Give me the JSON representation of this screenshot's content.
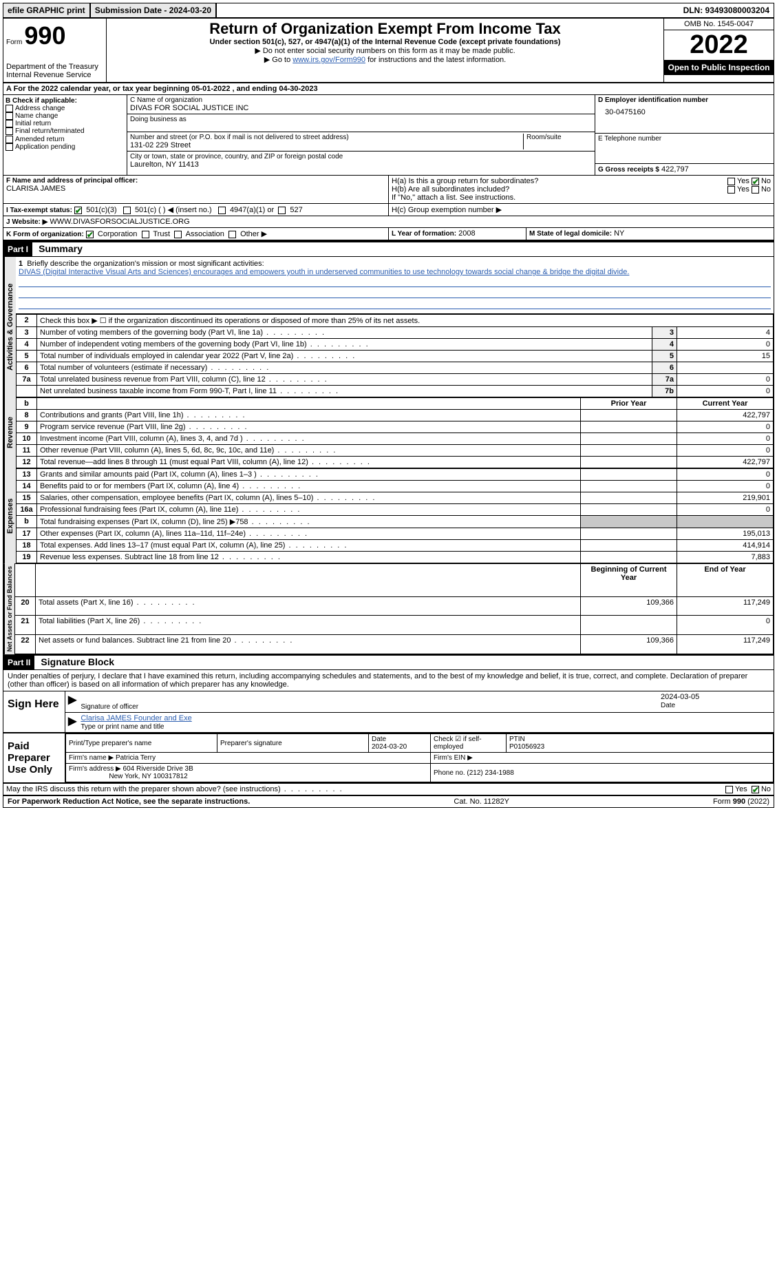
{
  "topbar": {
    "efile": "efile GRAPHIC print",
    "submission": "Submission Date - 2024-03-20",
    "dln": "DLN: 93493080003204"
  },
  "header": {
    "form_word": "Form",
    "form_num": "990",
    "title": "Return of Organization Exempt From Income Tax",
    "subtitle": "Under section 501(c), 527, or 4947(a)(1) of the Internal Revenue Code (except private foundations)",
    "note1": "▶ Do not enter social security numbers on this form as it may be made public.",
    "note2_pre": "▶ Go to ",
    "note2_link": "www.irs.gov/Form990",
    "note2_post": " for instructions and the latest information.",
    "dept": "Department of the Treasury",
    "irs": "Internal Revenue Service",
    "omb": "OMB No. 1545-0047",
    "year": "2022",
    "open": "Open to Public Inspection"
  },
  "lineA": "A For the 2022 calendar year, or tax year beginning 05-01-2022   , and ending 04-30-2023",
  "colB": {
    "title": "B Check if applicable:",
    "opts": [
      "Address change",
      "Name change",
      "Initial return",
      "Final return/terminated",
      "Amended return",
      "Application pending"
    ]
  },
  "colC": {
    "name_lbl": "C Name of organization",
    "name": "DIVAS FOR SOCIAL JUSTICE INC",
    "dba_lbl": "Doing business as",
    "addr_lbl": "Number and street (or P.O. box if mail is not delivered to street address)",
    "room_lbl": "Room/suite",
    "addr": "131-02 229 Street",
    "city_lbl": "City or town, state or province, country, and ZIP or foreign postal code",
    "city": "Laurelton, NY  11413"
  },
  "colD": {
    "ein_lbl": "D Employer identification number",
    "ein": "30-0475160",
    "tel_lbl": "E Telephone number",
    "gross_lbl": "G Gross receipts $",
    "gross": "422,797"
  },
  "rowF": {
    "lbl": "F  Name and address of principal officer:",
    "name": "CLARISA JAMES"
  },
  "rowH": {
    "ha": "H(a)  Is this a group return for subordinates?",
    "hb": "H(b)  Are all subordinates included?",
    "hb_note": "If \"No,\" attach a list. See instructions.",
    "hc": "H(c)  Group exemption number ▶",
    "yes": "Yes",
    "no": "No"
  },
  "rowI": {
    "lbl": "I   Tax-exempt status:",
    "o1": "501(c)(3)",
    "o2": "501(c) (  ) ◀ (insert no.)",
    "o3": "4947(a)(1) or",
    "o4": "527"
  },
  "rowJ": {
    "lbl": "J   Website: ▶",
    "val": "WWW.DIVASFORSOCIALJUSTICE.ORG"
  },
  "rowK": {
    "lbl": "K Form of organization:",
    "o1": "Corporation",
    "o2": "Trust",
    "o3": "Association",
    "o4": "Other ▶",
    "l_lbl": "L Year of formation:",
    "l_val": "2008",
    "m_lbl": "M State of legal domicile:",
    "m_val": "NY"
  },
  "part1": {
    "hdr": "Part I",
    "title": "Summary"
  },
  "section_labels": {
    "activities": "Activities & Governance",
    "revenue": "Revenue",
    "expenses": "Expenses",
    "net": "Net Assets or Fund Balances"
  },
  "summary": {
    "l1_lbl": "Briefly describe the organization's mission or most significant activities:",
    "l1_txt": "DIVAS (Digital Interactive Visual Arts and Sciences) encourages and empowers youth in underserved communities to use technology towards social change & bridge the digital divide.",
    "l2": "Check this box ▶ ☐  if the organization discontinued its operations or disposed of more than 25% of its net assets.",
    "rows_top": [
      {
        "n": "3",
        "t": "Number of voting members of the governing body (Part VI, line 1a)",
        "ln": "3",
        "v": "4"
      },
      {
        "n": "4",
        "t": "Number of independent voting members of the governing body (Part VI, line 1b)",
        "ln": "4",
        "v": "0"
      },
      {
        "n": "5",
        "t": "Total number of individuals employed in calendar year 2022 (Part V, line 2a)",
        "ln": "5",
        "v": "15"
      },
      {
        "n": "6",
        "t": "Total number of volunteers (estimate if necessary)",
        "ln": "6",
        "v": ""
      },
      {
        "n": "7a",
        "t": "Total unrelated business revenue from Part VIII, column (C), line 12",
        "ln": "7a",
        "v": "0"
      },
      {
        "n": "",
        "t": "Net unrelated business taxable income from Form 990-T, Part I, line 11",
        "ln": "7b",
        "v": "0"
      }
    ],
    "col_prior": "Prior Year",
    "col_curr": "Current Year",
    "rows_rev": [
      {
        "n": "8",
        "t": "Contributions and grants (Part VIII, line 1h)",
        "p": "",
        "c": "422,797"
      },
      {
        "n": "9",
        "t": "Program service revenue (Part VIII, line 2g)",
        "p": "",
        "c": "0"
      },
      {
        "n": "10",
        "t": "Investment income (Part VIII, column (A), lines 3, 4, and 7d )",
        "p": "",
        "c": "0"
      },
      {
        "n": "11",
        "t": "Other revenue (Part VIII, column (A), lines 5, 6d, 8c, 9c, 10c, and 11e)",
        "p": "",
        "c": "0"
      },
      {
        "n": "12",
        "t": "Total revenue—add lines 8 through 11 (must equal Part VIII, column (A), line 12)",
        "p": "",
        "c": "422,797"
      }
    ],
    "rows_exp": [
      {
        "n": "13",
        "t": "Grants and similar amounts paid (Part IX, column (A), lines 1–3 )",
        "p": "",
        "c": "0"
      },
      {
        "n": "14",
        "t": "Benefits paid to or for members (Part IX, column (A), line 4)",
        "p": "",
        "c": "0"
      },
      {
        "n": "15",
        "t": "Salaries, other compensation, employee benefits (Part IX, column (A), lines 5–10)",
        "p": "",
        "c": "219,901"
      },
      {
        "n": "16a",
        "t": "Professional fundraising fees (Part IX, column (A), line 11e)",
        "p": "",
        "c": "0"
      },
      {
        "n": "b",
        "t": "Total fundraising expenses (Part IX, column (D), line 25) ▶758",
        "p": "grey",
        "c": "grey"
      },
      {
        "n": "17",
        "t": "Other expenses (Part IX, column (A), lines 11a–11d, 11f–24e)",
        "p": "",
        "c": "195,013"
      },
      {
        "n": "18",
        "t": "Total expenses. Add lines 13–17 (must equal Part IX, column (A), line 25)",
        "p": "",
        "c": "414,914"
      },
      {
        "n": "19",
        "t": "Revenue less expenses. Subtract line 18 from line 12",
        "p": "",
        "c": "7,883"
      }
    ],
    "col_beg": "Beginning of Current Year",
    "col_end": "End of Year",
    "rows_net": [
      {
        "n": "20",
        "t": "Total assets (Part X, line 16)",
        "p": "109,366",
        "c": "117,249"
      },
      {
        "n": "21",
        "t": "Total liabilities (Part X, line 26)",
        "p": "",
        "c": "0"
      },
      {
        "n": "22",
        "t": "Net assets or fund balances. Subtract line 21 from line 20",
        "p": "109,366",
        "c": "117,249"
      }
    ]
  },
  "part2": {
    "hdr": "Part II",
    "title": "Signature Block"
  },
  "perjury": "Under penalties of perjury, I declare that I have examined this return, including accompanying schedules and statements, and to the best of my knowledge and belief, it is true, correct, and complete. Declaration of preparer (other than officer) is based on all information of which preparer has any knowledge.",
  "sign": {
    "here": "Sign Here",
    "sig_lbl": "Signature of officer",
    "date": "2024-03-05",
    "date_lbl": "Date",
    "name": "Clarisa JAMES  Founder and Exe",
    "name_lbl": "Type or print name and title"
  },
  "prep": {
    "title": "Paid Preparer Use Only",
    "c1": "Print/Type preparer's name",
    "c2": "Preparer's signature",
    "c3": "Date",
    "c3v": "2024-03-20",
    "c4": "Check ☑ if self-employed",
    "c5": "PTIN",
    "c5v": "P01056923",
    "firm_lbl": "Firm's name    ▶",
    "firm": "Patricia Terry",
    "ein_lbl": "Firm's EIN ▶",
    "addr_lbl": "Firm's address ▶",
    "addr1": "604 Riverside Drive 3B",
    "addr2": "New York, NY  100317812",
    "phone_lbl": "Phone no.",
    "phone": "(212) 234-1988"
  },
  "discuss": {
    "txt": "May the IRS discuss this return with the preparer shown above? (see instructions)",
    "yes": "Yes",
    "no": "No"
  },
  "footer": {
    "l": "For Paperwork Reduction Act Notice, see the separate instructions.",
    "m": "Cat. No. 11282Y",
    "r": "Form 990 (2022)"
  }
}
